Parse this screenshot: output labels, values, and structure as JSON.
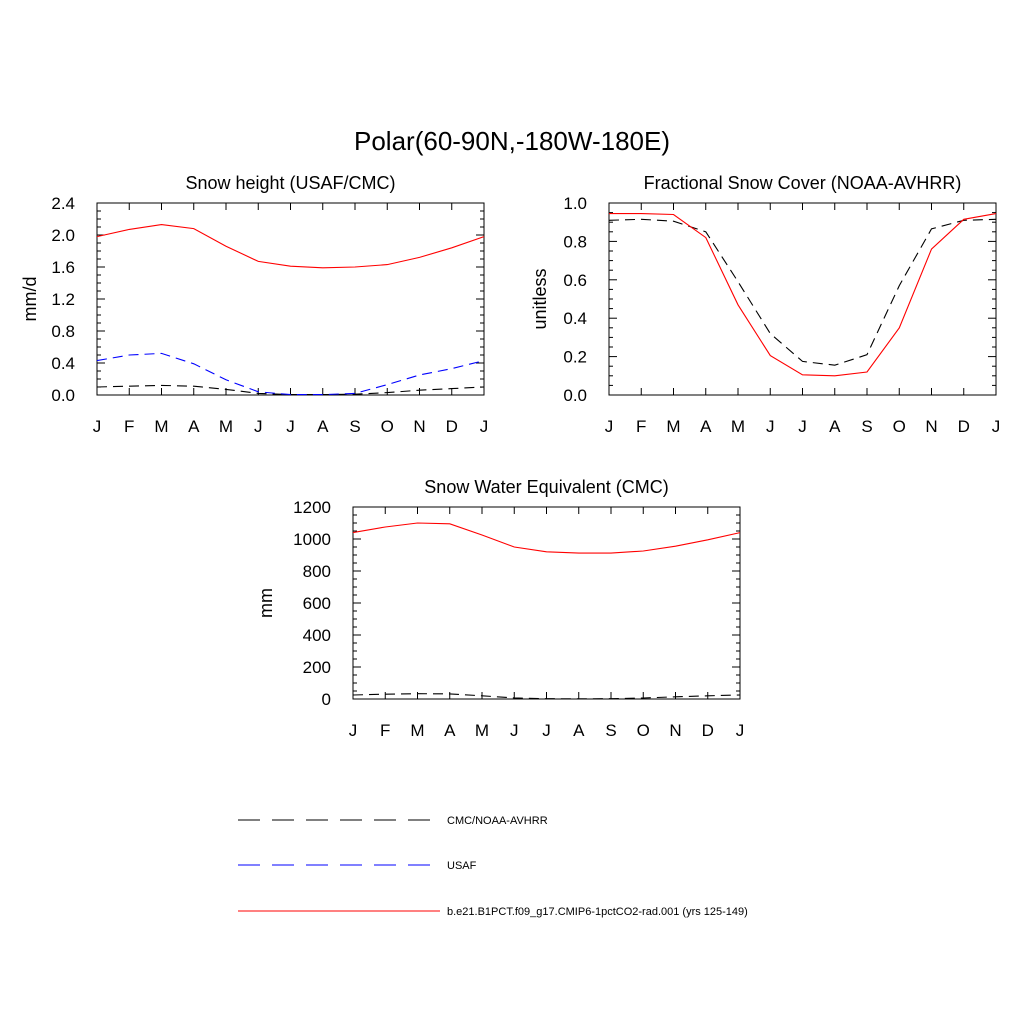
{
  "figure": {
    "title": "Polar(60-90N,-180W-180E)"
  },
  "legend": [
    {
      "label": "CMC/NOAA-AVHRR",
      "color": "#000000",
      "style": "dashed"
    },
    {
      "label": "USAF",
      "color": "#0000ff",
      "style": "dashed"
    },
    {
      "label": "b.e21.B1PCT.f09_g17.CMIP6-1pctCO2-rad.001 (yrs 125-149)",
      "color": "#ff0000",
      "style": "solid"
    }
  ],
  "chart_data": [
    {
      "type": "line",
      "title": "Snow height (USAF/CMC)",
      "xlabel": "",
      "ylabel": "mm/d",
      "categories": [
        "J",
        "F",
        "M",
        "A",
        "M",
        "J",
        "J",
        "A",
        "S",
        "O",
        "N",
        "D",
        "J"
      ],
      "ylim": [
        0,
        2.4
      ],
      "yticks": [
        "0.0",
        "0.4",
        "0.8",
        "1.2",
        "1.6",
        "2.0",
        "2.4"
      ],
      "series": [
        {
          "name": "CMC/NOAA-AVHRR",
          "color": "#000000",
          "style": "dashed",
          "values": [
            0.1,
            0.11,
            0.12,
            0.11,
            0.07,
            0.02,
            0.005,
            0.005,
            0.01,
            0.03,
            0.06,
            0.08,
            0.1
          ]
        },
        {
          "name": "USAF",
          "color": "#0000ff",
          "style": "dashed",
          "values": [
            0.43,
            0.5,
            0.52,
            0.39,
            0.19,
            0.04,
            0.005,
            0.005,
            0.02,
            0.13,
            0.25,
            0.33,
            0.43
          ]
        },
        {
          "name": "b.e21.B1PCT.f09_g17.CMIP6-1pctCO2-rad.001 (yrs 125-149)",
          "color": "#ff0000",
          "style": "solid",
          "values": [
            1.98,
            2.07,
            2.13,
            2.08,
            1.86,
            1.67,
            1.61,
            1.59,
            1.6,
            1.63,
            1.72,
            1.84,
            1.98
          ]
        }
      ]
    },
    {
      "type": "line",
      "title": "Fractional Snow Cover (NOAA-AVHRR)",
      "xlabel": "",
      "ylabel": "unitless",
      "categories": [
        "J",
        "F",
        "M",
        "A",
        "M",
        "J",
        "J",
        "A",
        "S",
        "O",
        "N",
        "D",
        "J"
      ],
      "ylim": [
        0,
        1.0
      ],
      "yticks": [
        "0.0",
        "0.2",
        "0.4",
        "0.6",
        "0.8",
        "1.0"
      ],
      "series": [
        {
          "name": "CMC/NOAA-AVHRR",
          "color": "#000000",
          "style": "dashed",
          "values": [
            0.91,
            0.915,
            0.905,
            0.85,
            0.59,
            0.32,
            0.175,
            0.155,
            0.21,
            0.57,
            0.865,
            0.91,
            0.915
          ]
        },
        {
          "name": "b.e21.B1PCT.f09_g17.CMIP6-1pctCO2-rad.001 (yrs 125-149)",
          "color": "#ff0000",
          "style": "solid",
          "values": [
            0.945,
            0.945,
            0.94,
            0.82,
            0.47,
            0.205,
            0.105,
            0.1,
            0.12,
            0.35,
            0.76,
            0.915,
            0.945
          ]
        }
      ]
    },
    {
      "type": "line",
      "title": "Snow Water Equivalent (CMC)",
      "xlabel": "",
      "ylabel": "mm",
      "categories": [
        "J",
        "F",
        "M",
        "A",
        "M",
        "J",
        "J",
        "A",
        "S",
        "O",
        "N",
        "D",
        "J"
      ],
      "ylim": [
        0,
        1200
      ],
      "yticks": [
        "0",
        "200",
        "400",
        "600",
        "800",
        "1000",
        "1200"
      ],
      "series": [
        {
          "name": "CMC/NOAA-AVHRR",
          "color": "#000000",
          "style": "dashed",
          "values": [
            25,
            30,
            33,
            32,
            20,
            7,
            2,
            1,
            2,
            6,
            14,
            20,
            25
          ]
        },
        {
          "name": "b.e21.B1PCT.f09_g17.CMIP6-1pctCO2-rad.001 (yrs 125-149)",
          "color": "#ff0000",
          "style": "solid",
          "values": [
            1040,
            1075,
            1100,
            1095,
            1025,
            950,
            920,
            912,
            912,
            925,
            955,
            995,
            1040
          ]
        }
      ]
    }
  ]
}
